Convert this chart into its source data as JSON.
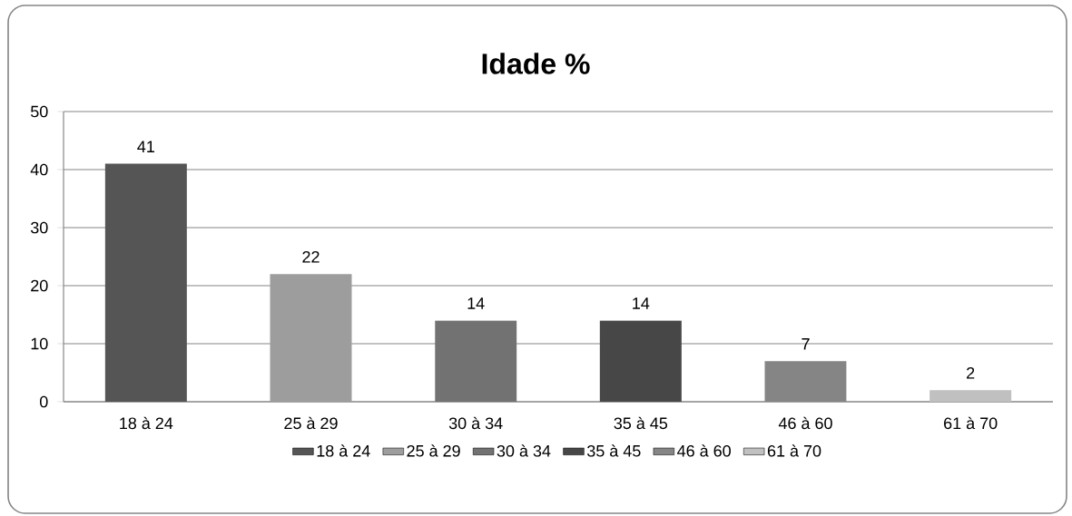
{
  "chart_data": {
    "type": "bar",
    "title": "Idade %",
    "categories": [
      "18 à 24",
      "25 à 29",
      "30 à 34",
      "35 à 45",
      "46 à 60",
      "61 à 70"
    ],
    "series": [
      {
        "name": "18 à 24",
        "color": "#555555",
        "values": [
          41,
          null,
          null,
          null,
          null,
          null
        ]
      },
      {
        "name": "25 à 29",
        "color": "#9d9d9d",
        "values": [
          null,
          22,
          null,
          null,
          null,
          null
        ]
      },
      {
        "name": "30 à 34",
        "color": "#727272",
        "values": [
          null,
          null,
          14,
          null,
          null,
          null
        ]
      },
      {
        "name": "35 à 45",
        "color": "#474747",
        "values": [
          null,
          null,
          null,
          14,
          null,
          null
        ]
      },
      {
        "name": "46 à 60",
        "color": "#858585",
        "values": [
          null,
          null,
          null,
          null,
          7,
          null
        ]
      },
      {
        "name": "61 à 70",
        "color": "#c0c0c0",
        "values": [
          null,
          null,
          null,
          null,
          null,
          2
        ]
      }
    ],
    "ylim": [
      0,
      50
    ],
    "yticks": [
      0,
      10,
      20,
      30,
      40,
      50
    ],
    "grid": "y",
    "legend": "bottom",
    "data_labels": true
  }
}
